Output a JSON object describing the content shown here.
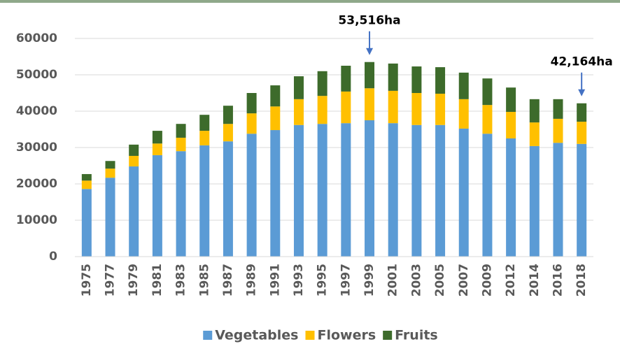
{
  "chart_data": {
    "type": "stacked_bar",
    "categories": [
      "1975",
      "1977",
      "1979",
      "1981",
      "1983",
      "1985",
      "1987",
      "1989",
      "1991",
      "1993",
      "1995",
      "1997",
      "1999",
      "2001",
      "2003",
      "2005",
      "2007",
      "2009",
      "2012",
      "2014",
      "2016",
      "2018"
    ],
    "series": [
      {
        "name": "Vegetables",
        "color": "#5b9bd5",
        "values": [
          18600,
          21700,
          24800,
          27900,
          29000,
          30600,
          31700,
          33800,
          34800,
          36200,
          36500,
          36700,
          37500,
          36700,
          36200,
          36200,
          35200,
          33800,
          32500,
          30400,
          31300,
          31000
        ]
      },
      {
        "name": "Flowers",
        "color": "#ffc000",
        "values": [
          2300,
          2500,
          2900,
          3200,
          3700,
          4000,
          4800,
          5600,
          6500,
          7100,
          7700,
          8700,
          8800,
          8900,
          8800,
          8600,
          8100,
          7900,
          7300,
          6500,
          6600,
          6100
        ]
      },
      {
        "name": "Fruits",
        "color": "#3d6b2b",
        "values": [
          1800,
          2100,
          3100,
          3500,
          3800,
          4400,
          5000,
          5600,
          5800,
          6300,
          6800,
          7100,
          7216,
          7500,
          7300,
          7300,
          7300,
          7300,
          6700,
          6400,
          5400,
          5064
        ]
      }
    ],
    "ylim": [
      0,
      60000
    ],
    "yticks": [
      0,
      10000,
      20000,
      30000,
      40000,
      50000,
      60000
    ],
    "grid": true,
    "legend": "bottom",
    "annotations": [
      {
        "text": "53,516ha",
        "category": "1999"
      },
      {
        "text": "42,164ha",
        "category": "2018"
      }
    ]
  }
}
